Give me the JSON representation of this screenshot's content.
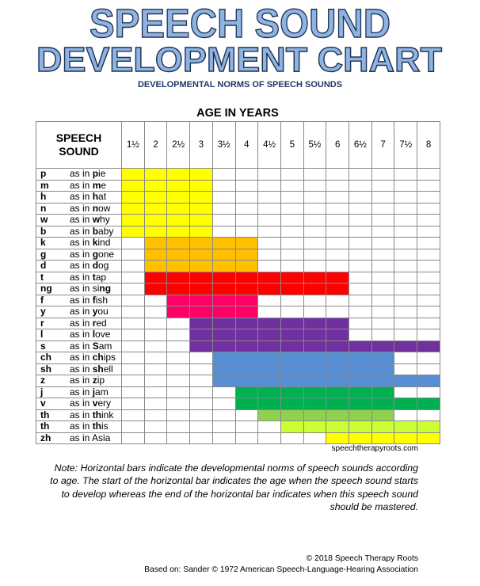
{
  "title": {
    "line1": "SPEECH SOUND",
    "line2": "DEVELOPMENT CHART",
    "fill_color": "#8eb4e3",
    "outline_color": "#1f3050"
  },
  "subtitle": "DEVELOPMENTAL NORMS OF SPEECH SOUNDS",
  "chart_data": {
    "type": "table",
    "title": "SPEECH SOUND DEVELOPMENT CHART",
    "xlabel": "AGE IN YEARS",
    "row_header": "SPEECH SOUND",
    "ages": [
      "1½",
      "2",
      "2½",
      "3",
      "3½",
      "4",
      "4½",
      "5",
      "5½",
      "6",
      "6½",
      "7",
      "7½",
      "8"
    ],
    "age_values": [
      1.5,
      2,
      2.5,
      3,
      3.5,
      4,
      4.5,
      5,
      5.5,
      6,
      6.5,
      7,
      7.5,
      8
    ],
    "sounds": [
      {
        "sound": "p",
        "pre": "as in ",
        "word": [
          "",
          "p",
          "ie"
        ],
        "start": 1.5,
        "end": 3,
        "color": "#ffff00"
      },
      {
        "sound": "m",
        "pre": "as in ",
        "word": [
          "",
          "m",
          "e"
        ],
        "start": 1.5,
        "end": 3,
        "color": "#ffff00"
      },
      {
        "sound": "h",
        "pre": "as in ",
        "word": [
          "",
          "h",
          "at"
        ],
        "start": 1.5,
        "end": 3,
        "color": "#ffff00"
      },
      {
        "sound": "n",
        "pre": "as in ",
        "word": [
          "",
          "n",
          "ow"
        ],
        "start": 1.5,
        "end": 3,
        "color": "#ffff00"
      },
      {
        "sound": "w",
        "pre": "as in ",
        "word": [
          "",
          "w",
          "hy"
        ],
        "start": 1.5,
        "end": 3,
        "color": "#ffff00"
      },
      {
        "sound": "b",
        "pre": "as in ",
        "word": [
          "",
          "b",
          "aby"
        ],
        "start": 1.5,
        "end": 3,
        "color": "#ffff00"
      },
      {
        "sound": "k",
        "pre": "as in ",
        "word": [
          "",
          "k",
          "ind"
        ],
        "start": 2,
        "end": 4,
        "color": "#ffc000"
      },
      {
        "sound": "g",
        "pre": "as in ",
        "word": [
          "",
          "g",
          "one"
        ],
        "start": 2,
        "end": 4,
        "color": "#ffc000"
      },
      {
        "sound": "d",
        "pre": "as in ",
        "word": [
          "",
          "d",
          "og"
        ],
        "start": 2,
        "end": 4,
        "color": "#ffc000"
      },
      {
        "sound": "t",
        "pre": "as in ",
        "word": [
          "",
          "t",
          "ap"
        ],
        "start": 2,
        "end": 6,
        "color": "#ff0000"
      },
      {
        "sound": "ng",
        "pre": "as in ",
        "word": [
          "si",
          "ng",
          ""
        ],
        "start": 2,
        "end": 6,
        "color": "#ff0000"
      },
      {
        "sound": "f",
        "pre": "as in ",
        "word": [
          "",
          "f",
          "ish"
        ],
        "start": 2.5,
        "end": 4,
        "color": "#ff0066"
      },
      {
        "sound": "y",
        "pre": "as in ",
        "word": [
          "",
          "y",
          "ou"
        ],
        "start": 2.5,
        "end": 4,
        "color": "#ff0066"
      },
      {
        "sound": "r",
        "pre": "as in ",
        "word": [
          "",
          "r",
          "ed"
        ],
        "start": 3,
        "end": 6,
        "color": "#7030a0"
      },
      {
        "sound": "l",
        "pre": "as in ",
        "word": [
          "",
          "l",
          "ove"
        ],
        "start": 3,
        "end": 6,
        "color": "#7030a0"
      },
      {
        "sound": "s",
        "pre": "as in ",
        "word": [
          "",
          "S",
          "am"
        ],
        "start": 3,
        "end": 8,
        "color": "#7030a0"
      },
      {
        "sound": "ch",
        "pre": "as in ",
        "word": [
          "",
          "ch",
          "ips"
        ],
        "start": 3.5,
        "end": 7,
        "color": "#558ed5"
      },
      {
        "sound": "sh",
        "pre": "as in ",
        "word": [
          "",
          "sh",
          "ell"
        ],
        "start": 3.5,
        "end": 7,
        "color": "#558ed5"
      },
      {
        "sound": "z",
        "pre": "as in ",
        "word": [
          "",
          "z",
          "ip"
        ],
        "start": 3.5,
        "end": 8,
        "color": "#558ed5"
      },
      {
        "sound": "j",
        "pre": "as in ",
        "word": [
          "",
          "j",
          "am"
        ],
        "start": 4,
        "end": 7,
        "color": "#00b050"
      },
      {
        "sound": "v",
        "pre": "as in ",
        "word": [
          "",
          "v",
          "ery"
        ],
        "start": 4,
        "end": 8,
        "color": "#00b050"
      },
      {
        "sound": "th",
        "pre": "as in ",
        "word": [
          "",
          "th",
          "ink"
        ],
        "start": 4.5,
        "end": 7,
        "color": "#92d050"
      },
      {
        "sound": "th",
        "pre": "as in ",
        "word": [
          "",
          "th",
          "is"
        ],
        "start": 5,
        "end": 8,
        "color": "#ccff33"
      },
      {
        "sound": "zh",
        "pre": "as in ",
        "word": [
          "Asia",
          "",
          ""
        ],
        "start": 6,
        "end": 8,
        "color": "#ffff00"
      }
    ]
  },
  "website": "speechtherapyroots.com",
  "note": "Note: Horizontal bars indicate the developmental norms of speech sounds according to age. The start of the horizontal bar indicates the age when the speech sound starts to develop whereas the end of the horizontal bar indicates when this speech sound should be mastered.",
  "copyright": "© 2018 Speech Therapy Roots",
  "source": "Based on: Sander © 1972 American Speech-Language-Hearing Association"
}
